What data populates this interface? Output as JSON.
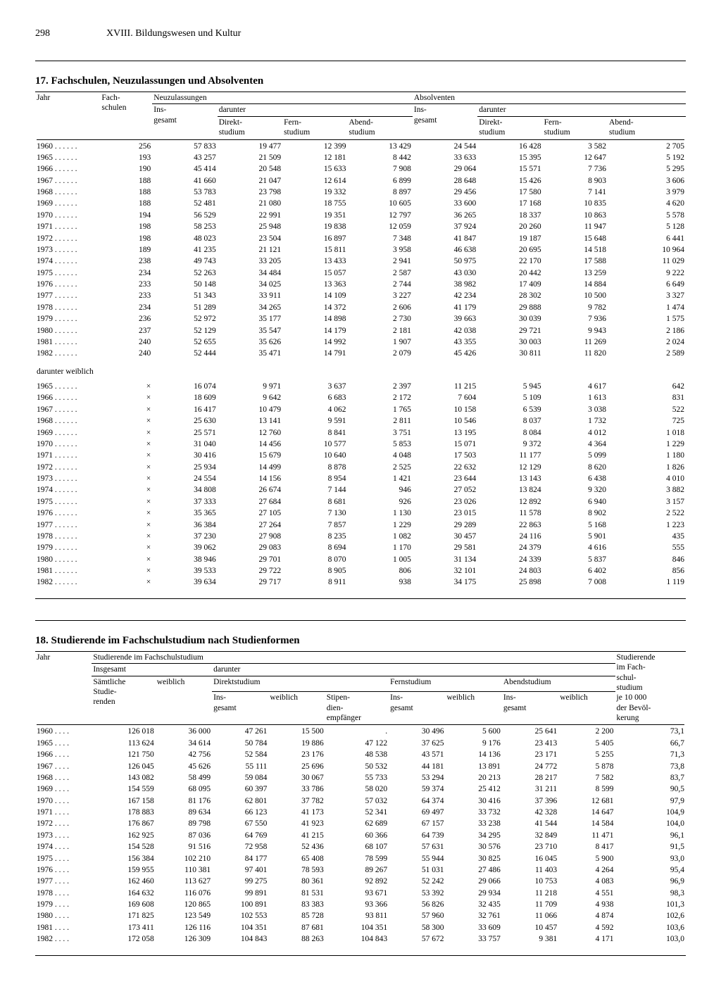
{
  "page": {
    "number": "298",
    "chapter": "XVIII. Bildungswesen und Kultur"
  },
  "table17": {
    "title": "17. Fachschulen, Neuzulassungen und Absolventen",
    "columns": {
      "jahr": "Jahr",
      "fachschulen": "Fach-\nschulen",
      "neuzulassungen": "Neuzulassungen",
      "absolventen": "Absolventen",
      "insgesamt": "Ins-\ngesamt",
      "darunter": "darunter",
      "direkt": "Direkt-\nstudium",
      "fern": "Fern-\nstudium",
      "abend": "Abend-\nstudium"
    },
    "darunter_weiblich": "darunter weiblich",
    "rows_main": [
      {
        "y": "1960",
        "fs": "256",
        "ni": "57 833",
        "nd": "19 477",
        "nf": "12 399",
        "na": "13 429",
        "ai": "24 544",
        "ad": "16 428",
        "af": "3 582",
        "aa": "2 705"
      },
      {
        "y": "1965",
        "fs": "193",
        "ni": "43 257",
        "nd": "21 509",
        "nf": "12 181",
        "na": "8 442",
        "ai": "33 633",
        "ad": "15 395",
        "af": "12 647",
        "aa": "5 192"
      },
      {
        "y": "1966",
        "fs": "190",
        "ni": "45 414",
        "nd": "20 548",
        "nf": "15 633",
        "na": "7 908",
        "ai": "29 064",
        "ad": "15 571",
        "af": "7 736",
        "aa": "5 295"
      },
      {
        "y": "1967",
        "fs": "188",
        "ni": "41 660",
        "nd": "21 047",
        "nf": "12 614",
        "na": "6 899",
        "ai": "28 648",
        "ad": "15 426",
        "af": "8 903",
        "aa": "3 606"
      },
      {
        "y": "1968",
        "fs": "188",
        "ni": "53 783",
        "nd": "23 798",
        "nf": "19 332",
        "na": "8 897",
        "ai": "29 456",
        "ad": "17 580",
        "af": "7 141",
        "aa": "3 979"
      },
      {
        "y": "1969",
        "fs": "188",
        "ni": "52 481",
        "nd": "21 080",
        "nf": "18 755",
        "na": "10 605",
        "ai": "33 600",
        "ad": "17 168",
        "af": "10 835",
        "aa": "4 620"
      },
      {
        "y": "1970",
        "fs": "194",
        "ni": "56 529",
        "nd": "22 991",
        "nf": "19 351",
        "na": "12 797",
        "ai": "36 265",
        "ad": "18 337",
        "af": "10 863",
        "aa": "5 578"
      },
      {
        "y": "1971",
        "fs": "198",
        "ni": "58 253",
        "nd": "25 948",
        "nf": "19 838",
        "na": "12 059",
        "ai": "37 924",
        "ad": "20 260",
        "af": "11 947",
        "aa": "5 128"
      },
      {
        "y": "1972",
        "fs": "198",
        "ni": "48 023",
        "nd": "23 504",
        "nf": "16 897",
        "na": "7 348",
        "ai": "41 847",
        "ad": "19 187",
        "af": "15 648",
        "aa": "6 441"
      },
      {
        "y": "1973",
        "fs": "189",
        "ni": "41 235",
        "nd": "21 121",
        "nf": "15 811",
        "na": "3 958",
        "ai": "46 638",
        "ad": "20 695",
        "af": "14 518",
        "aa": "10 964"
      },
      {
        "y": "1974",
        "fs": "238",
        "ni": "49 743",
        "nd": "33 205",
        "nf": "13 433",
        "na": "2 941",
        "ai": "50 975",
        "ad": "22 170",
        "af": "17 588",
        "aa": "11 029"
      },
      {
        "y": "1975",
        "fs": "234",
        "ni": "52 263",
        "nd": "34 484",
        "nf": "15 057",
        "na": "2 587",
        "ai": "43 030",
        "ad": "20 442",
        "af": "13 259",
        "aa": "9 222"
      },
      {
        "y": "1976",
        "fs": "233",
        "ni": "50 148",
        "nd": "34 025",
        "nf": "13 363",
        "na": "2 744",
        "ai": "38 982",
        "ad": "17 409",
        "af": "14 884",
        "aa": "6 649"
      },
      {
        "y": "1977",
        "fs": "233",
        "ni": "51 343",
        "nd": "33 911",
        "nf": "14 109",
        "na": "3 227",
        "ai": "42 234",
        "ad": "28 302",
        "af": "10 500",
        "aa": "3 327"
      },
      {
        "y": "1978",
        "fs": "234",
        "ni": "51 289",
        "nd": "34 265",
        "nf": "14 372",
        "na": "2 606",
        "ai": "41 179",
        "ad": "29 888",
        "af": "9 782",
        "aa": "1 474"
      },
      {
        "y": "1979",
        "fs": "236",
        "ni": "52 972",
        "nd": "35 177",
        "nf": "14 898",
        "na": "2 730",
        "ai": "39 663",
        "ad": "30 039",
        "af": "7 936",
        "aa": "1 575"
      },
      {
        "y": "1980",
        "fs": "237",
        "ni": "52 129",
        "nd": "35 547",
        "nf": "14 179",
        "na": "2 181",
        "ai": "42 038",
        "ad": "29 721",
        "af": "9 943",
        "aa": "2 186"
      },
      {
        "y": "1981",
        "fs": "240",
        "ni": "52 655",
        "nd": "35 626",
        "nf": "14 992",
        "na": "1 907",
        "ai": "43 355",
        "ad": "30 003",
        "af": "11 269",
        "aa": "2 024"
      },
      {
        "y": "1982",
        "fs": "240",
        "ni": "52 444",
        "nd": "35 471",
        "nf": "14 791",
        "na": "2 079",
        "ai": "45 426",
        "ad": "30 811",
        "af": "11 820",
        "aa": "2 589"
      }
    ],
    "rows_female": [
      {
        "y": "1965",
        "fs": "×",
        "ni": "16 074",
        "nd": "9 971",
        "nf": "3 637",
        "na": "2 397",
        "ai": "11 215",
        "ad": "5 945",
        "af": "4 617",
        "aa": "642"
      },
      {
        "y": "1966",
        "fs": "×",
        "ni": "18 609",
        "nd": "9 642",
        "nf": "6 683",
        "na": "2 172",
        "ai": "7 604",
        "ad": "5 109",
        "af": "1 613",
        "aa": "831"
      },
      {
        "y": "1967",
        "fs": "×",
        "ni": "16 417",
        "nd": "10 479",
        "nf": "4 062",
        "na": "1 765",
        "ai": "10 158",
        "ad": "6 539",
        "af": "3 038",
        "aa": "522"
      },
      {
        "y": "1968",
        "fs": "×",
        "ni": "25 630",
        "nd": "13 141",
        "nf": "9 591",
        "na": "2 811",
        "ai": "10 546",
        "ad": "8 037",
        "af": "1 732",
        "aa": "725"
      },
      {
        "y": "1969",
        "fs": "×",
        "ni": "25 571",
        "nd": "12 760",
        "nf": "8 841",
        "na": "3 751",
        "ai": "13 195",
        "ad": "8 084",
        "af": "4 012",
        "aa": "1 018"
      },
      {
        "y": "1970",
        "fs": "×",
        "ni": "31 040",
        "nd": "14 456",
        "nf": "10 577",
        "na": "5 853",
        "ai": "15 071",
        "ad": "9 372",
        "af": "4 364",
        "aa": "1 229"
      },
      {
        "y": "1971",
        "fs": "×",
        "ni": "30 416",
        "nd": "15 679",
        "nf": "10 640",
        "na": "4 048",
        "ai": "17 503",
        "ad": "11 177",
        "af": "5 099",
        "aa": "1 180"
      },
      {
        "y": "1972",
        "fs": "×",
        "ni": "25 934",
        "nd": "14 499",
        "nf": "8 878",
        "na": "2 525",
        "ai": "22 632",
        "ad": "12 129",
        "af": "8 620",
        "aa": "1 826"
      },
      {
        "y": "1973",
        "fs": "×",
        "ni": "24 554",
        "nd": "14 156",
        "nf": "8 954",
        "na": "1 421",
        "ai": "23 644",
        "ad": "13 143",
        "af": "6 438",
        "aa": "4 010"
      },
      {
        "y": "1974",
        "fs": "×",
        "ni": "34 808",
        "nd": "26 674",
        "nf": "7 144",
        "na": "946",
        "ai": "27 052",
        "ad": "13 824",
        "af": "9 320",
        "aa": "3 882"
      },
      {
        "y": "1975",
        "fs": "×",
        "ni": "37 333",
        "nd": "27 684",
        "nf": "8 681",
        "na": "926",
        "ai": "23 026",
        "ad": "12 892",
        "af": "6 940",
        "aa": "3 157"
      },
      {
        "y": "1976",
        "fs": "×",
        "ni": "35 365",
        "nd": "27 105",
        "nf": "7 130",
        "na": "1 130",
        "ai": "23 015",
        "ad": "11 578",
        "af": "8 902",
        "aa": "2 522"
      },
      {
        "y": "1977",
        "fs": "×",
        "ni": "36 384",
        "nd": "27 264",
        "nf": "7 857",
        "na": "1 229",
        "ai": "29 289",
        "ad": "22 863",
        "af": "5 168",
        "aa": "1 223"
      },
      {
        "y": "1978",
        "fs": "×",
        "ni": "37 230",
        "nd": "27 908",
        "nf": "8 235",
        "na": "1 082",
        "ai": "30 457",
        "ad": "24 116",
        "af": "5 901",
        "aa": "435"
      },
      {
        "y": "1979",
        "fs": "×",
        "ni": "39 062",
        "nd": "29 083",
        "nf": "8 694",
        "na": "1 170",
        "ai": "29 581",
        "ad": "24 379",
        "af": "4 616",
        "aa": "555"
      },
      {
        "y": "1980",
        "fs": "×",
        "ni": "38 946",
        "nd": "29 701",
        "nf": "8 070",
        "na": "1 005",
        "ai": "31 134",
        "ad": "24 339",
        "af": "5 837",
        "aa": "846"
      },
      {
        "y": "1981",
        "fs": "×",
        "ni": "39 533",
        "nd": "29 722",
        "nf": "8 905",
        "na": "806",
        "ai": "32 101",
        "ad": "24 803",
        "af": "6 402",
        "aa": "856"
      },
      {
        "y": "1982",
        "fs": "×",
        "ni": "39 634",
        "nd": "29 717",
        "nf": "8 911",
        "na": "938",
        "ai": "34 175",
        "ad": "25 898",
        "af": "7 008",
        "aa": "1 119"
      }
    ]
  },
  "table18": {
    "title": "18. Studierende im Fachschulstudium nach Studienformen",
    "columns": {
      "jahr": "Jahr",
      "studierende": "Studierende im Fachschulstudium",
      "insgesamt": "Insgesamt",
      "darunter": "darunter",
      "saemtliche": "Sämtliche\nStudie-\nrenden",
      "weiblich": "weiblich",
      "direkt": "Direktstudium",
      "fern": "Fernstudium",
      "abend": "Abendstudium",
      "ins": "Ins-\ngesamt",
      "stipend": "Stipen-\ndien-\nempfänger",
      "per10k": "Studierende\nim Fach-\nschul-\nstudium\nje 10 000\nder Bevöl-\nkerung"
    },
    "rows": [
      {
        "y": "1960",
        "sa": "126 018",
        "sw": "36 000",
        "di": "47 261",
        "dw": "15 500",
        "ds": ".",
        "fi": "30 496",
        "fw": "5 600",
        "abi": "25 641",
        "abw": "2 200",
        "p": "73,1"
      },
      {
        "y": "1965",
        "sa": "113 624",
        "sw": "34 614",
        "di": "50 784",
        "dw": "19 886",
        "ds": "47 122",
        "fi": "37 625",
        "fw": "9 176",
        "abi": "23 413",
        "abw": "5 405",
        "p": "66,7"
      },
      {
        "y": "1966",
        "sa": "121 750",
        "sw": "42 756",
        "di": "52 584",
        "dw": "23 176",
        "ds": "48 538",
        "fi": "43 571",
        "fw": "14 136",
        "abi": "23 171",
        "abw": "5 255",
        "p": "71,3"
      },
      {
        "y": "1967",
        "sa": "126 045",
        "sw": "45 626",
        "di": "55 111",
        "dw": "25 696",
        "ds": "50 532",
        "fi": "44 181",
        "fw": "13 891",
        "abi": "24 772",
        "abw": "5 878",
        "p": "73,8"
      },
      {
        "y": "1968",
        "sa": "143 082",
        "sw": "58 499",
        "di": "59 084",
        "dw": "30 067",
        "ds": "55 733",
        "fi": "53 294",
        "fw": "20 213",
        "abi": "28 217",
        "abw": "7 582",
        "p": "83,7"
      },
      {
        "y": "1969",
        "sa": "154 559",
        "sw": "68 095",
        "di": "60 397",
        "dw": "33 786",
        "ds": "58 020",
        "fi": "59 374",
        "fw": "25 412",
        "abi": "31 211",
        "abw": "8 599",
        "p": "90,5"
      },
      {
        "y": "1970",
        "sa": "167 158",
        "sw": "81 176",
        "di": "62 801",
        "dw": "37 782",
        "ds": "57 032",
        "fi": "64 374",
        "fw": "30 416",
        "abi": "37 396",
        "abw": "12 681",
        "p": "97,9"
      },
      {
        "y": "1971",
        "sa": "178 883",
        "sw": "89 634",
        "di": "66 123",
        "dw": "41 173",
        "ds": "52 341",
        "fi": "69 497",
        "fw": "33 732",
        "abi": "42 328",
        "abw": "14 647",
        "p": "104,9"
      },
      {
        "y": "1972",
        "sa": "176 867",
        "sw": "89 798",
        "di": "67 550",
        "dw": "41 923",
        "ds": "62 689",
        "fi": "67 157",
        "fw": "33 238",
        "abi": "41 544",
        "abw": "14 584",
        "p": "104,0"
      },
      {
        "y": "1973",
        "sa": "162 925",
        "sw": "87 036",
        "di": "64 769",
        "dw": "41 215",
        "ds": "60 366",
        "fi": "64 739",
        "fw": "34 295",
        "abi": "32 849",
        "abw": "11 471",
        "p": "96,1"
      },
      {
        "y": "1974",
        "sa": "154 528",
        "sw": "91 516",
        "di": "72 958",
        "dw": "52 436",
        "ds": "68 107",
        "fi": "57 631",
        "fw": "30 576",
        "abi": "23 710",
        "abw": "8 417",
        "p": "91,5"
      },
      {
        "y": "1975",
        "sa": "156 384",
        "sw": "102 210",
        "di": "84 177",
        "dw": "65 408",
        "ds": "78 599",
        "fi": "55 944",
        "fw": "30 825",
        "abi": "16 045",
        "abw": "5 900",
        "p": "93,0"
      },
      {
        "y": "1976",
        "sa": "159 955",
        "sw": "110 381",
        "di": "97 401",
        "dw": "78 593",
        "ds": "89 267",
        "fi": "51 031",
        "fw": "27 486",
        "abi": "11 403",
        "abw": "4 264",
        "p": "95,4"
      },
      {
        "y": "1977",
        "sa": "162 460",
        "sw": "113 627",
        "di": "99 275",
        "dw": "80 361",
        "ds": "92 892",
        "fi": "52 242",
        "fw": "29 066",
        "abi": "10 753",
        "abw": "4 083",
        "p": "96,9"
      },
      {
        "y": "1978",
        "sa": "164 632",
        "sw": "116 076",
        "di": "99 891",
        "dw": "81 531",
        "ds": "93 671",
        "fi": "53 392",
        "fw": "29 934",
        "abi": "11 218",
        "abw": "4 551",
        "p": "98,3"
      },
      {
        "y": "1979",
        "sa": "169 608",
        "sw": "120 865",
        "di": "100 891",
        "dw": "83 383",
        "ds": "93 366",
        "fi": "56 826",
        "fw": "32 435",
        "abi": "11 709",
        "abw": "4 938",
        "p": "101,3"
      },
      {
        "y": "1980",
        "sa": "171 825",
        "sw": "123 549",
        "di": "102 553",
        "dw": "85 728",
        "ds": "93 811",
        "fi": "57 960",
        "fw": "32 761",
        "abi": "11 066",
        "abw": "4 874",
        "p": "102,6"
      },
      {
        "y": "1981",
        "sa": "173 411",
        "sw": "126 116",
        "di": "104 351",
        "dw": "87 681",
        "ds": "104 351",
        "fi": "58 300",
        "fw": "33 609",
        "abi": "10 457",
        "abw": "4 592",
        "p": "103,6"
      },
      {
        "y": "1982",
        "sa": "172 058",
        "sw": "126 309",
        "di": "104 843",
        "dw": "88 263",
        "ds": "104 843",
        "fi": "57 672",
        "fw": "33 757",
        "abi": "9 381",
        "abw": "4 171",
        "p": "103,0"
      }
    ]
  }
}
